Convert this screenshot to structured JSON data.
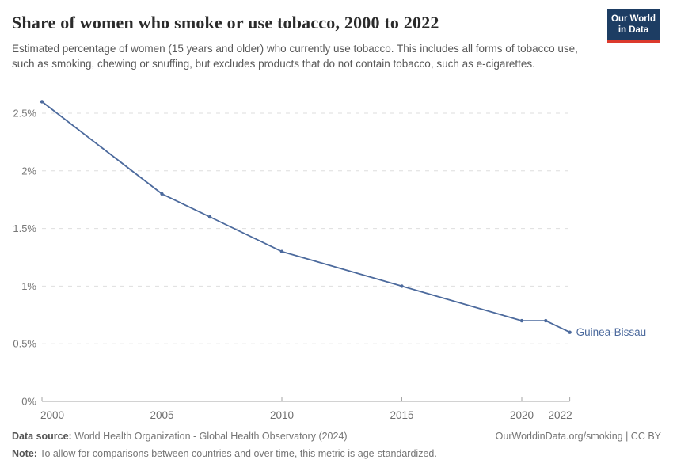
{
  "header": {
    "title": "Share of women who smoke or use tobacco, 2000 to 2022",
    "subtitle": "Estimated percentage of women (15 years and older) who currently use tobacco. This includes all forms of tobacco use, such as smoking, chewing or snuffing, but excludes products that do not contain tobacco, such as e-cigarettes."
  },
  "logo": {
    "line1": "Our World",
    "line2": "in Data",
    "bg_color": "#1d3d63",
    "stripe_color": "#dc3a2d"
  },
  "chart_data": {
    "type": "line",
    "title": "Share of women who smoke or use tobacco, 2000 to 2022",
    "xlabel": "",
    "ylabel": "",
    "xlim": [
      2000,
      2022
    ],
    "ylim": [
      0,
      2.75
    ],
    "x_ticks": [
      2000,
      2005,
      2010,
      2015,
      2020,
      2022
    ],
    "y_ticks": [
      0,
      0.5,
      1,
      1.5,
      2,
      2.5
    ],
    "y_tick_suffix": "%",
    "grid": true,
    "legend_position": "end-of-line-label",
    "series": [
      {
        "name": "Guinea-Bissau",
        "color": "#4c6a9d",
        "x": [
          2000,
          2005,
          2007,
          2010,
          2015,
          2020,
          2021,
          2022
        ],
        "y": [
          2.6,
          1.8,
          1.6,
          1.3,
          1.0,
          0.7,
          0.7,
          0.6
        ]
      }
    ]
  },
  "footer": {
    "datasource_label": "Data source:",
    "datasource_text": " World Health Organization - Global Health Observatory (2024)",
    "note_label": "Note:",
    "note_text": " To allow for comparisons between countries and over time, this metric is age-standardized.",
    "link_text": "OurWorldinData.org/smoking | CC BY"
  }
}
